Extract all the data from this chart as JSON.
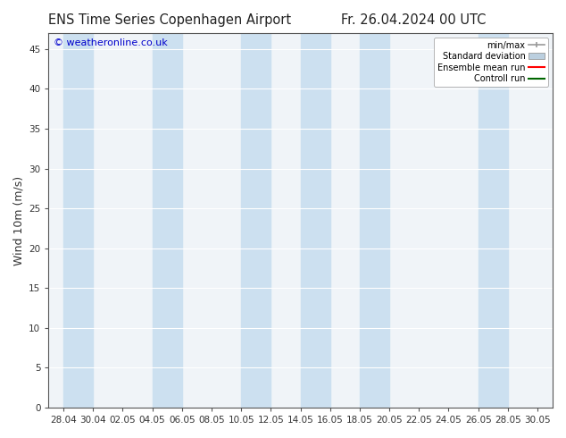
{
  "title_left": "ENS Time Series Copenhagen Airport",
  "title_right": "Fr. 26.04.2024 00 UTC",
  "ylabel": "Wind 10m (m/s)",
  "watermark": "© weatheronline.co.uk",
  "ylim": [
    0,
    47
  ],
  "yticks": [
    0,
    5,
    10,
    15,
    20,
    25,
    30,
    35,
    40,
    45
  ],
  "xtick_labels": [
    "28.04",
    "30.04",
    "02.05",
    "04.05",
    "06.05",
    "08.05",
    "10.05",
    "12.05",
    "14.05",
    "16.05",
    "18.05",
    "20.05",
    "22.05",
    "24.05",
    "26.05",
    "28.05",
    "30.05"
  ],
  "bg_color": "#ffffff",
  "plot_bg_color": "#f0f4f8",
  "shaded_color": "#cce0f0",
  "grid_color": "#ffffff",
  "legend_entries": [
    "min/max",
    "Standard deviation",
    "Ensemble mean run",
    "Controll run"
  ],
  "legend_minmax_color": "#999999",
  "legend_std_color": "#bbcfdf",
  "legend_ens_color": "#ff0000",
  "legend_ctrl_color": "#006600",
  "title_fontsize": 10.5,
  "tick_fontsize": 7.5,
  "ylabel_fontsize": 9,
  "watermark_color": "#0000cc",
  "watermark_fontsize": 8,
  "shaded_x": [
    [
      0,
      2
    ],
    [
      6,
      8
    ],
    [
      12,
      14
    ],
    [
      16,
      18
    ],
    [
      20,
      22
    ],
    [
      28,
      30
    ]
  ],
  "x_min": -1.0,
  "x_max": 33.0
}
